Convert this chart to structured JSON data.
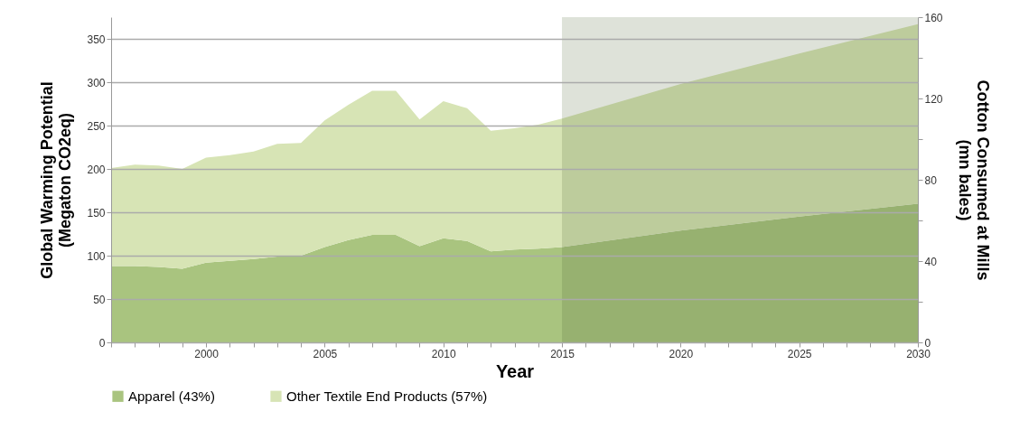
{
  "chart_data": {
    "type": "area",
    "stacked": true,
    "xlabel": "Year",
    "ylabel": "Global Warming Potential\n(Megaton CO2eq)",
    "y2label": "Cotton Consumed at Mills\n(mn bales)",
    "x": [
      1996,
      1997,
      1998,
      1999,
      2000,
      2001,
      2002,
      2003,
      2004,
      2005,
      2006,
      2007,
      2008,
      2009,
      2010,
      2011,
      2012,
      2013,
      2014,
      2015,
      2020,
      2025,
      2030
    ],
    "series": [
      {
        "name": "Apparel (43%)",
        "color": "#a9c47f",
        "values": [
          88,
          88,
          87,
          85,
          92,
          94,
          96,
          99,
          100,
          110,
          118,
          124,
          124,
          111,
          120,
          117,
          105,
          107,
          108,
          110,
          129,
          145,
          160
        ]
      },
      {
        "name": "Other Textile End Products (57%)",
        "color": "#d7e4b5",
        "values": [
          113,
          117,
          117,
          115,
          121,
          122,
          124,
          130,
          130,
          146,
          156,
          166,
          166,
          146,
          158,
          153,
          139,
          140,
          143,
          148,
          169,
          188,
          207
        ]
      }
    ],
    "xlim": [
      1996,
      2030
    ],
    "xticks": [
      {
        "value": 1996,
        "label": null
      },
      {
        "value": 1997,
        "label": null
      },
      {
        "value": 1998,
        "label": null
      },
      {
        "value": 1999,
        "label": null
      },
      2000,
      {
        "value": 2001,
        "label": null
      },
      {
        "value": 2002,
        "label": null
      },
      {
        "value": 2003,
        "label": null
      },
      {
        "value": 2004,
        "label": null
      },
      2005,
      {
        "value": 2006,
        "label": null
      },
      {
        "value": 2007,
        "label": null
      },
      {
        "value": 2008,
        "label": null
      },
      {
        "value": 2009,
        "label": null
      },
      2010,
      {
        "value": 2011,
        "label": null
      },
      {
        "value": 2012,
        "label": null
      },
      {
        "value": 2013,
        "label": null
      },
      {
        "value": 2014,
        "label": null
      },
      2015,
      {
        "value": 2016,
        "label": null
      },
      {
        "value": 2017,
        "label": null
      },
      {
        "value": 2018,
        "label": null
      },
      {
        "value": 2019,
        "label": null
      },
      2020,
      {
        "value": 2021,
        "label": null
      },
      {
        "value": 2022,
        "label": null
      },
      {
        "value": 2023,
        "label": null
      },
      {
        "value": 2024,
        "label": null
      },
      2025,
      {
        "value": 2026,
        "label": null
      },
      {
        "value": 2027,
        "label": null
      },
      {
        "value": 2028,
        "label": null
      },
      {
        "value": 2029,
        "label": null
      },
      2030
    ],
    "ylim": [
      0,
      375
    ],
    "yticks": [
      0,
      50,
      100,
      150,
      200,
      250,
      300,
      350
    ],
    "y2lim": [
      0,
      160
    ],
    "y2ticks": [
      0,
      {
        "value": 20,
        "label": null
      },
      40,
      {
        "value": 60,
        "label": null
      },
      80,
      {
        "value": 100,
        "label": null
      },
      120,
      {
        "value": 140,
        "label": null
      },
      160
    ],
    "bands": [
      {
        "axis": "x",
        "from": 2015,
        "to": 2030,
        "color": "#4a5e2a"
      }
    ],
    "grid": "y",
    "legend": "bottom"
  }
}
